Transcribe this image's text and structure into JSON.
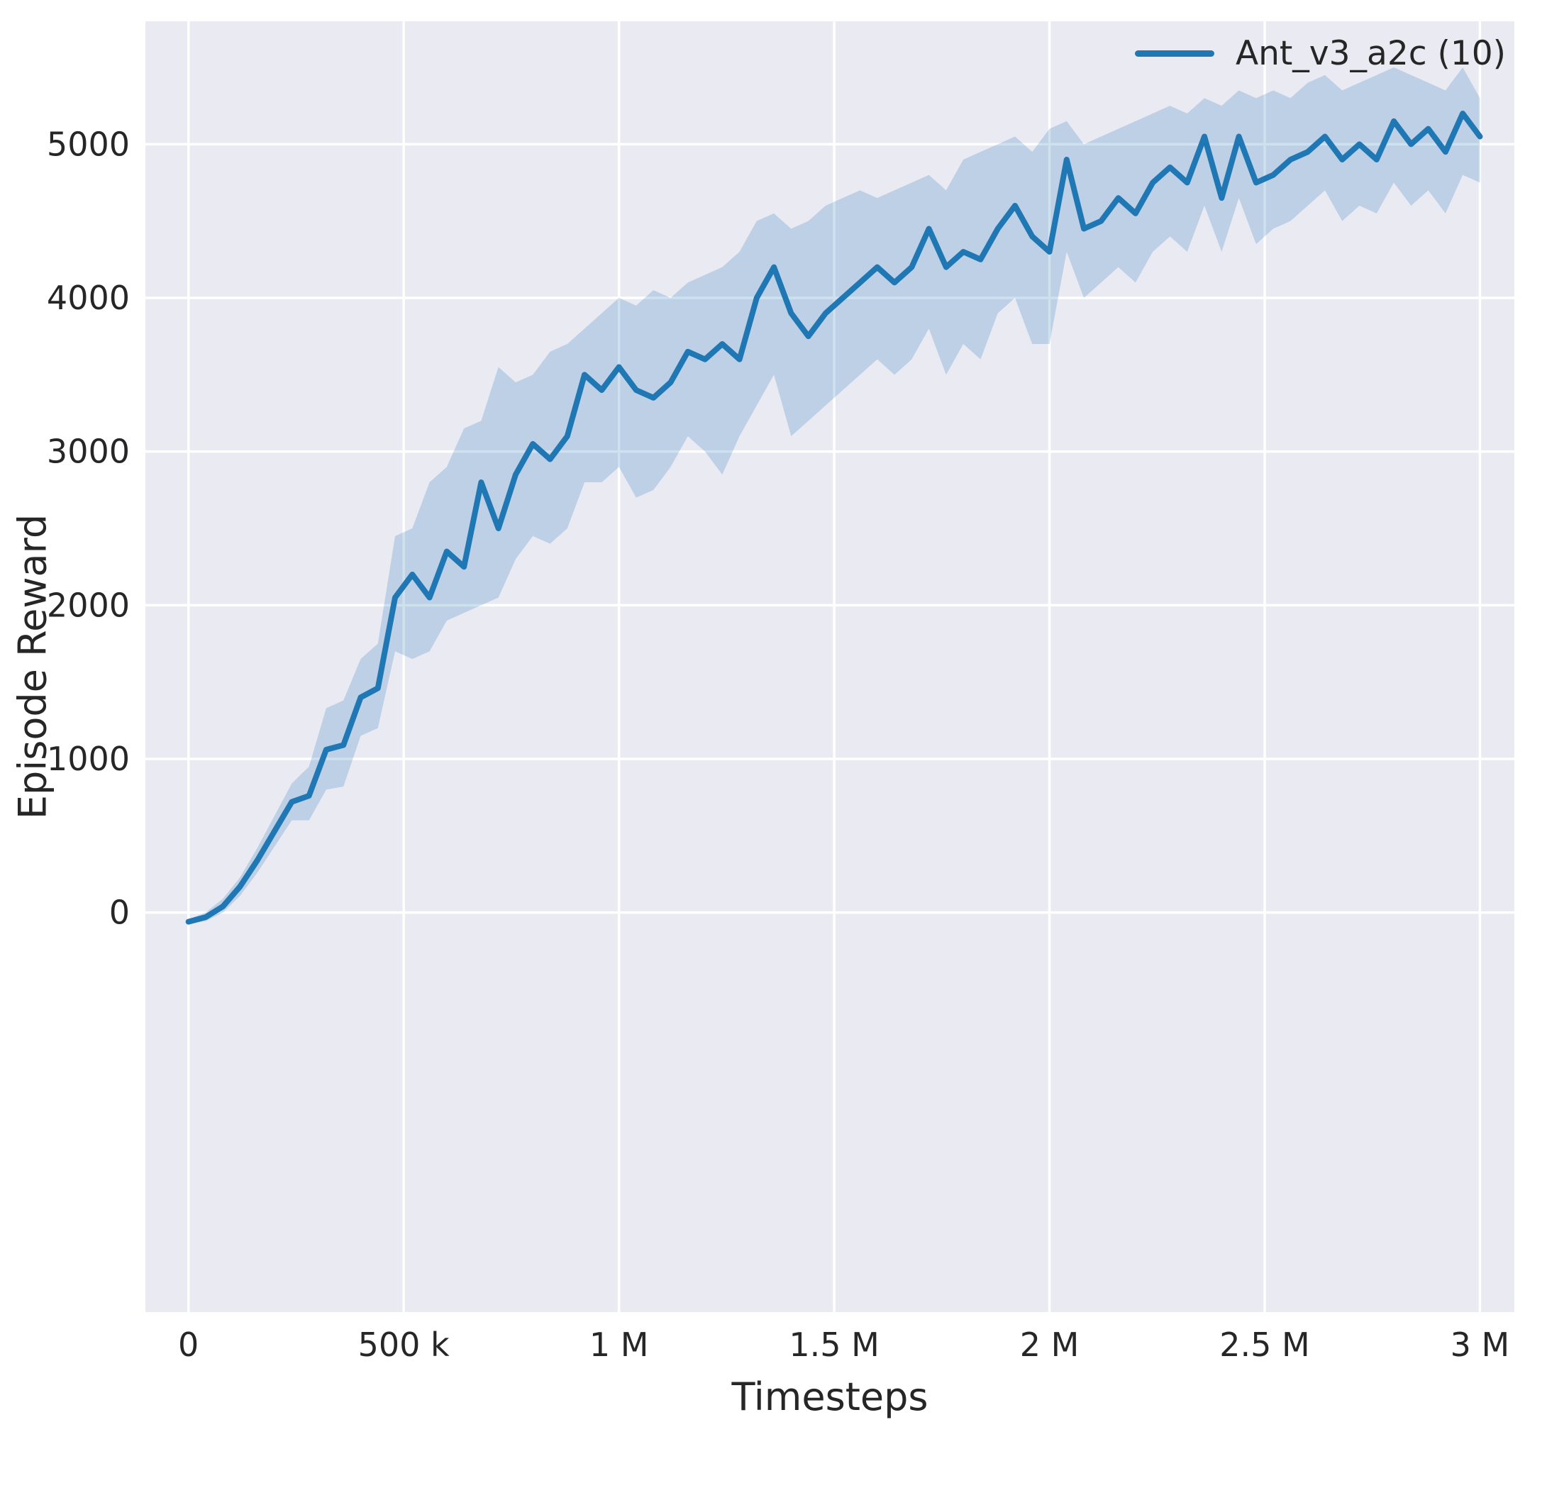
{
  "figure": {
    "background": "#ffffff"
  },
  "legend": {
    "entries": [
      {
        "label": "Ant_v3_a2c (10)",
        "color": "#1f77b4"
      }
    ]
  },
  "chart_data": {
    "type": "line",
    "title": "",
    "xlabel": "Timesteps",
    "ylabel": "Episode Reward",
    "grid": true,
    "legend_position": "upper right",
    "xlim": [
      -100000,
      3080000
    ],
    "ylim": [
      -2600,
      5800
    ],
    "xticks": {
      "values": [
        0,
        500000,
        1000000,
        1500000,
        2000000,
        2500000,
        3000000
      ],
      "labels": [
        "0",
        "500 k",
        "1 M",
        "1.5 M",
        "2 M",
        "2.5 M",
        "3 M"
      ]
    },
    "yticks": {
      "values": [
        0,
        1000,
        2000,
        3000,
        4000,
        5000
      ],
      "labels": [
        "0",
        "1000",
        "2000",
        "3000",
        "4000",
        "5000"
      ]
    },
    "x": [
      0,
      40000,
      80000,
      120000,
      160000,
      200000,
      240000,
      280000,
      320000,
      360000,
      400000,
      440000,
      480000,
      520000,
      560000,
      600000,
      640000,
      680000,
      720000,
      760000,
      800000,
      840000,
      880000,
      920000,
      960000,
      1000000,
      1040000,
      1080000,
      1120000,
      1160000,
      1200000,
      1240000,
      1280000,
      1320000,
      1360000,
      1400000,
      1440000,
      1480000,
      1520000,
      1560000,
      1600000,
      1640000,
      1680000,
      1720000,
      1760000,
      1800000,
      1840000,
      1880000,
      1920000,
      1960000,
      2000000,
      2040000,
      2080000,
      2120000,
      2160000,
      2200000,
      2240000,
      2280000,
      2320000,
      2360000,
      2400000,
      2440000,
      2480000,
      2520000,
      2560000,
      2600000,
      2640000,
      2680000,
      2720000,
      2760000,
      2800000,
      2840000,
      2880000,
      2920000,
      2960000,
      3000000
    ],
    "series": [
      {
        "name": "Ant_v3_a2c (10)",
        "mean": [
          -60,
          -30,
          40,
          170,
          340,
          530,
          720,
          760,
          1060,
          1090,
          1400,
          1460,
          2050,
          2200,
          2050,
          2350,
          2250,
          2800,
          2500,
          2850,
          3050,
          2950,
          3100,
          3500,
          3400,
          3550,
          3400,
          3350,
          3450,
          3650,
          3600,
          3700,
          3600,
          4000,
          4200,
          3900,
          3750,
          3900,
          4000,
          4100,
          4200,
          4100,
          4200,
          4450,
          4200,
          4300,
          4250,
          4450,
          4600,
          4400,
          4300,
          4900,
          4450,
          4500,
          4650,
          4550,
          4750,
          4850,
          4750,
          5050,
          4650,
          5050,
          4750,
          4800,
          4900,
          4950,
          5050,
          4900,
          5000,
          4900,
          5150,
          5000,
          5100,
          4950,
          5200,
          5050
        ],
        "band_lower": [
          -75,
          -55,
          0,
          110,
          260,
          430,
          600,
          600,
          800,
          820,
          1150,
          1200,
          1700,
          1650,
          1700,
          1900,
          1950,
          2000,
          2050,
          2300,
          2450,
          2400,
          2500,
          2800,
          2800,
          2900,
          2700,
          2750,
          2900,
          3100,
          3000,
          2850,
          3100,
          3300,
          3500,
          3100,
          3200,
          3300,
          3400,
          3500,
          3600,
          3500,
          3600,
          3800,
          3500,
          3700,
          3600,
          3900,
          4000,
          3700,
          3700,
          4300,
          4000,
          4100,
          4200,
          4100,
          4300,
          4400,
          4300,
          4600,
          4300,
          4650,
          4350,
          4450,
          4500,
          4600,
          4700,
          4500,
          4600,
          4550,
          4750,
          4600,
          4700,
          4550,
          4800,
          4750
        ],
        "band_upper": [
          -45,
          0,
          90,
          230,
          420,
          630,
          840,
          950,
          1330,
          1380,
          1650,
          1750,
          2450,
          2500,
          2800,
          2900,
          3150,
          3200,
          3550,
          3450,
          3500,
          3650,
          3700,
          3800,
          3900,
          4000,
          3950,
          4050,
          4000,
          4100,
          4150,
          4200,
          4300,
          4500,
          4550,
          4450,
          4500,
          4600,
          4650,
          4700,
          4650,
          4700,
          4750,
          4800,
          4700,
          4900,
          4950,
          5000,
          5050,
          4950,
          5100,
          5150,
          5000,
          5050,
          5100,
          5150,
          5200,
          5250,
          5200,
          5300,
          5250,
          5350,
          5300,
          5350,
          5300,
          5400,
          5450,
          5350,
          5400,
          5450,
          5500,
          5450,
          5400,
          5350,
          5500,
          5300
        ]
      }
    ],
    "colors": {
      "line": "#1f77b4",
      "band": "#1f77b4",
      "band_opacity": 0.22,
      "plot_bg": "#eaeaf2",
      "grid": "#ffffff",
      "tick_text": "#262626"
    }
  }
}
